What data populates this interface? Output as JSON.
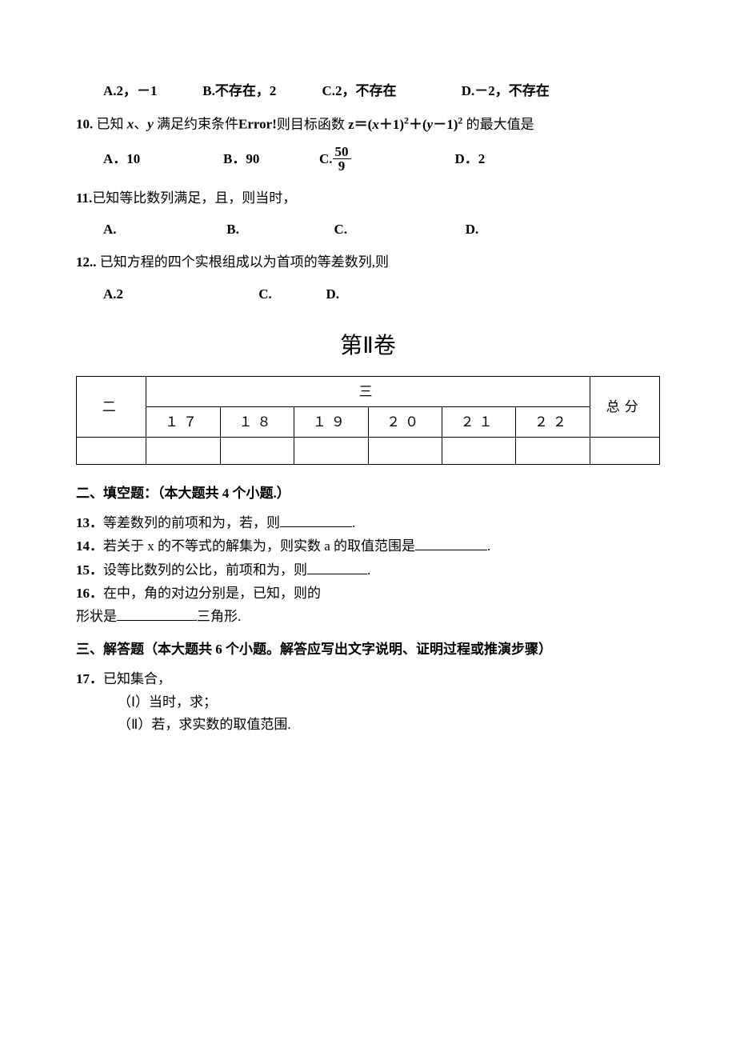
{
  "q9": {
    "options": {
      "a": "A.2，－1",
      "b": "B.不存在，2",
      "c": "C.2，不存在",
      "d": "D.－2，不存在"
    }
  },
  "q10": {
    "stem_prefix": "10.",
    "stem_body_before": " 已知",
    "stem_vars": "x、y",
    "stem_middle": "满足约束条件",
    "stem_error": "Error!",
    "stem_after": "则目标函数 z＝(x＋1)²＋(y－1)² 的最大值是",
    "a": "A．10",
    "b": "B．90",
    "c_label": "C.",
    "c_num": "50",
    "c_den": "9",
    "d": "D．2"
  },
  "q11": {
    "stem_num": "11.",
    "stem_body": "已知等比数列满足，且，则当时，",
    "a": "A.",
    "b": "B.",
    "c": "C.",
    "d": "D."
  },
  "q12": {
    "stem_num": "12..",
    "stem_body": " 已知方程的四个实根组成以为首项的等差数列,则",
    "a": "A.2",
    "c": "C.",
    "d": "D."
  },
  "section2_title": "第Ⅱ卷",
  "score_table": {
    "headers": [
      "二",
      "三",
      "总分"
    ],
    "subheaders": [
      "１７",
      "１８",
      "１９",
      "２０",
      "２１",
      "２２"
    ]
  },
  "fill_heading": "二、填空题：（本大题共 4 个小题.）",
  "q13": {
    "num": "13．",
    "body_a": "等差数列的前项和为，若，则",
    "blank_w": 90,
    "tail": "."
  },
  "q14": {
    "num": "14．",
    "body_a": "若关于 x 的不等式的解集为，则实数 a 的取值范围是",
    "blank_w": 90,
    "tail": "."
  },
  "q15": {
    "num": "15．",
    "body_a": "设等比数列的公比，前项和为，则",
    "blank_w": 75,
    "tail": "."
  },
  "q16": {
    "num": "16．",
    "line1": "在中，角的对边分别是，已知，则的",
    "line2_a": "形状是",
    "blank_w": 100,
    "line2_b": "三角形."
  },
  "solve_heading": "三、解答题（本大题共 6 个小题。解答应写出文字说明、证明过程或推演步骤）",
  "q17": {
    "num": "17．",
    "stem": "已知集合，",
    "p1": "（Ⅰ）当时，求；",
    "p2": "（Ⅱ）若，求实数的取值范围."
  },
  "colors": {
    "text": "#000000",
    "bg": "#ffffff",
    "border": "#000000"
  }
}
